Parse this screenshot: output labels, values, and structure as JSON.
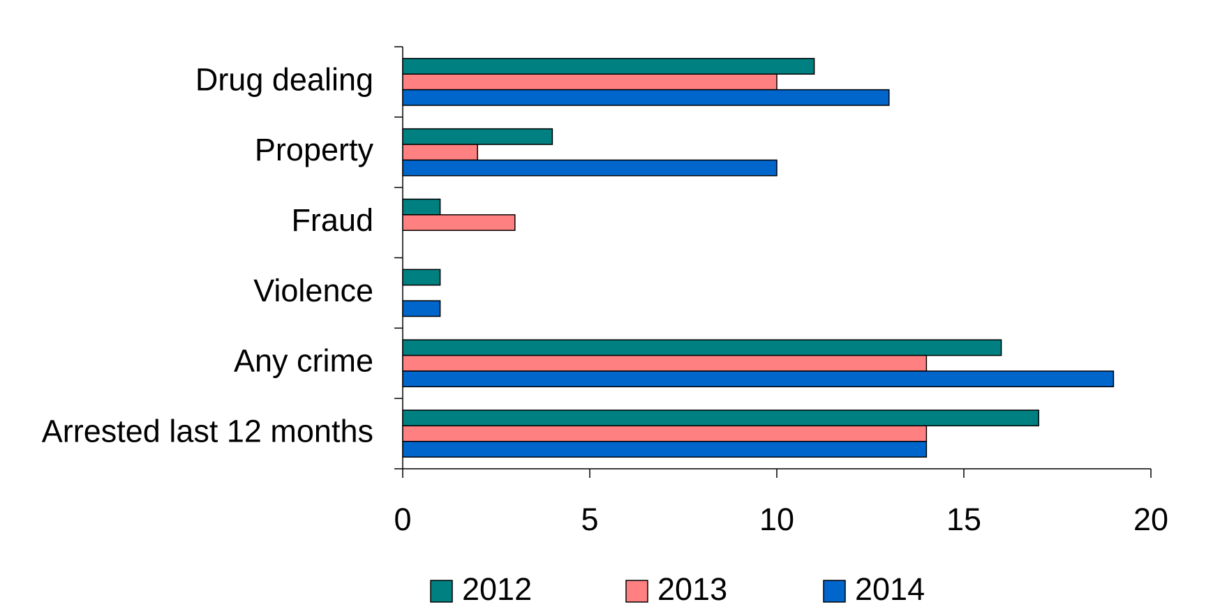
{
  "chart_data": {
    "type": "bar",
    "orientation": "horizontal",
    "categories": [
      "Drug dealing",
      "Property",
      "Fraud",
      "Violence",
      "Any crime",
      "Arrested last 12 months"
    ],
    "series": [
      {
        "name": "2012",
        "color": "#008080",
        "values": [
          11,
          4,
          1,
          1,
          16,
          17
        ]
      },
      {
        "name": "2013",
        "color": "#ff8080",
        "values": [
          10,
          2,
          3,
          0,
          14,
          14
        ]
      },
      {
        "name": "2014",
        "color": "#0066cc",
        "values": [
          13,
          10,
          0,
          1,
          19,
          14
        ]
      }
    ],
    "xlim": [
      0,
      20
    ],
    "xticks": [
      0,
      5,
      10,
      15,
      20
    ],
    "grid": false,
    "legend": "bottom"
  }
}
